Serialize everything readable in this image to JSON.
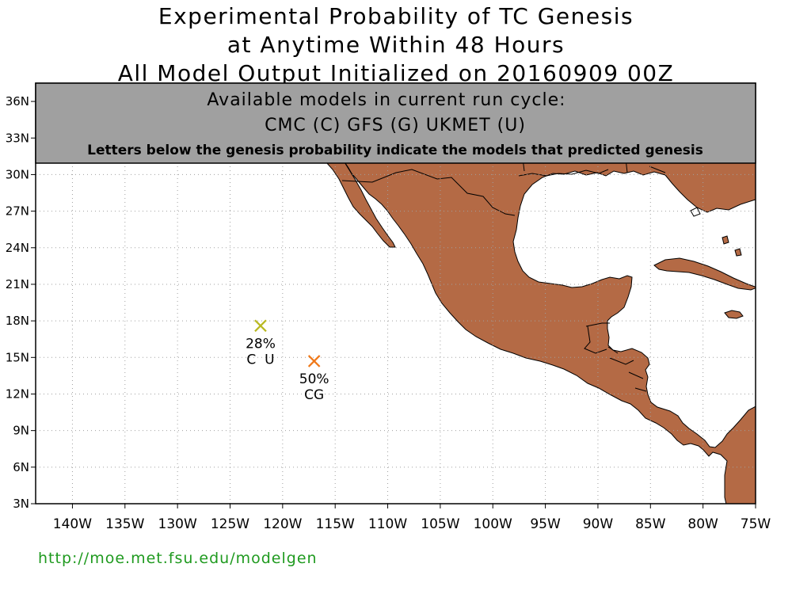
{
  "title": {
    "line1": "Experimental Probability of TC Genesis",
    "line2": "at Anytime Within 48 Hours",
    "line3": "All Model Output Initialized on 20160909 00Z"
  },
  "info_box": {
    "line1": "Available models in current run cycle:",
    "line2": "CMC (C) GFS (G)  UKMET (U)",
    "line3": "Letters below the genesis probability indicate the models that predicted genesis"
  },
  "axes": {
    "x_ticks": [
      "140W",
      "135W",
      "130W",
      "125W",
      "120W",
      "115W",
      "110W",
      "105W",
      "100W",
      "95W",
      "90W",
      "85W",
      "80W",
      "75W"
    ],
    "y_ticks": [
      "3N",
      "6N",
      "9N",
      "12N",
      "15N",
      "18N",
      "21N",
      "24N",
      "27N",
      "30N",
      "33N",
      "36N"
    ],
    "lon_range": [
      -143.5,
      -75
    ],
    "lat_range": [
      3,
      37.5
    ]
  },
  "genesis_points": [
    {
      "lon": -122.1,
      "lat": 17.6,
      "probability": "28%",
      "models": "C  U",
      "color": "#b8b820"
    },
    {
      "lon": -117.0,
      "lat": 14.7,
      "probability": "50%",
      "models": "CG",
      "color": "#f07818"
    }
  ],
  "colors": {
    "land": "#b46a45",
    "ocean": "#ffffff",
    "info_box": "#a0a0a0",
    "url": "#1f9a1f"
  },
  "footer": {
    "url": "http://moe.met.fsu.edu/modelgen"
  }
}
